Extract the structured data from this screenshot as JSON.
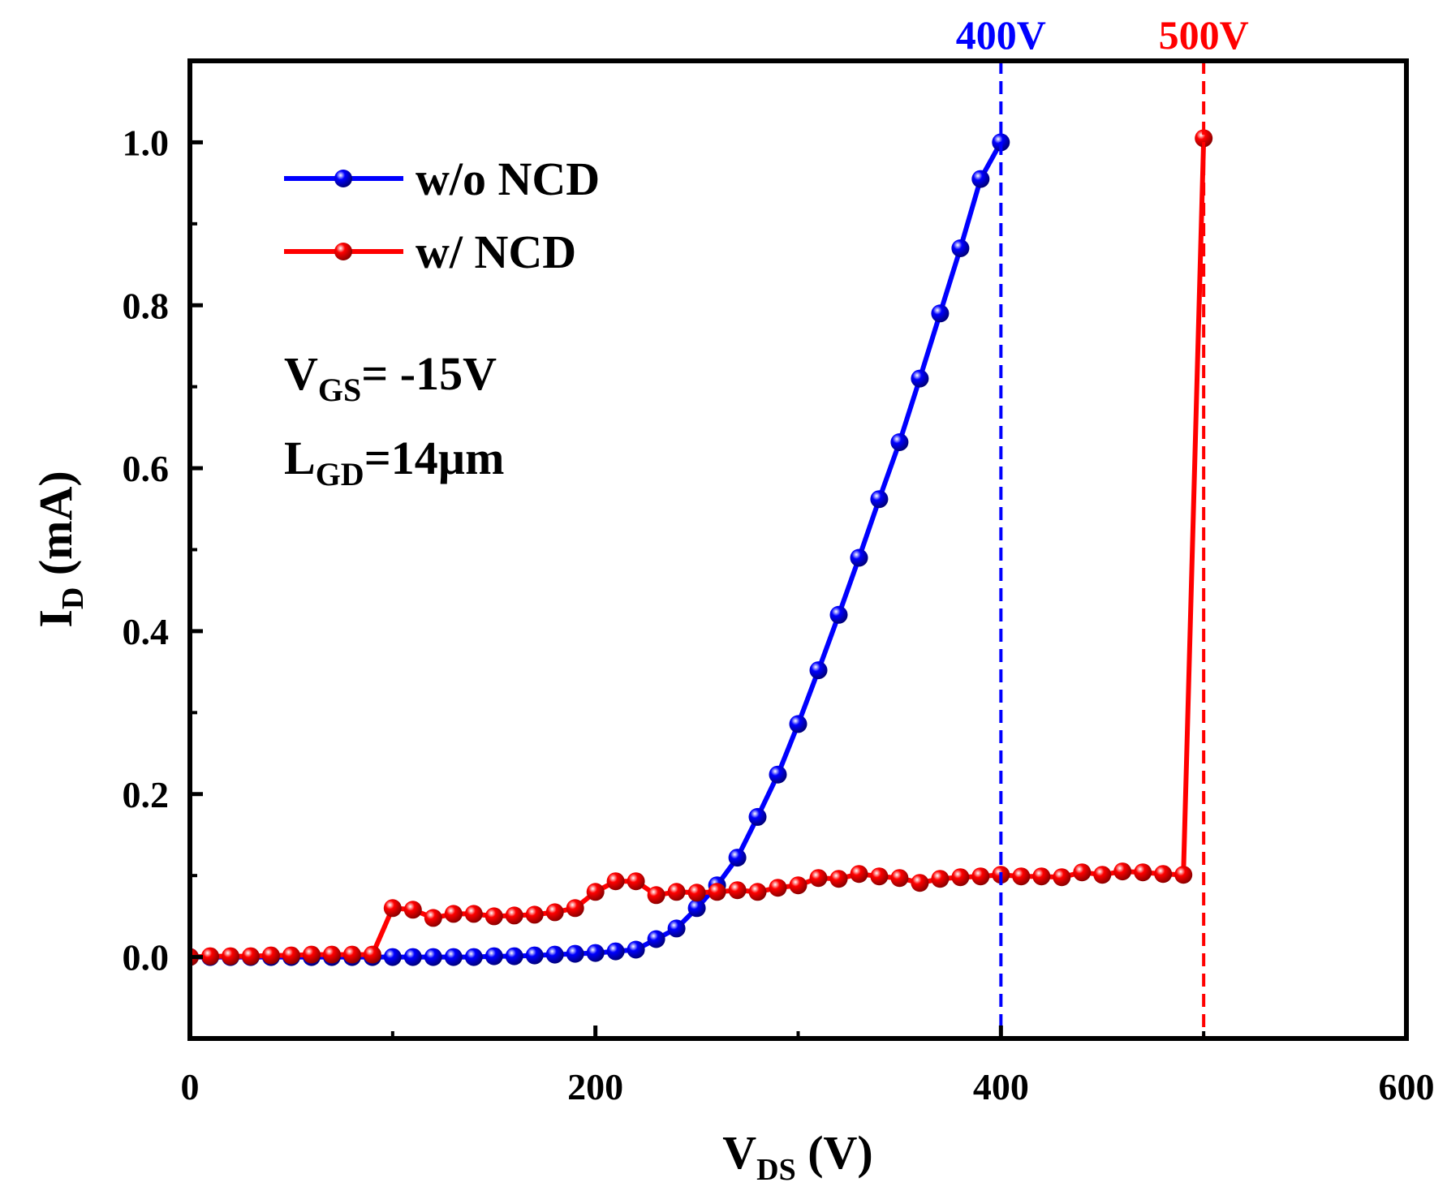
{
  "chart_data": {
    "type": "line",
    "xlabel": {
      "main": "V",
      "sub": "DS",
      "unit": " (V)"
    },
    "ylabel": {
      "main": "I",
      "sub": "D",
      "unit": " (mA)"
    },
    "xlim": [
      0,
      600
    ],
    "ylim": [
      -0.1,
      1.1
    ],
    "xticks": [
      0,
      200,
      400,
      600
    ],
    "yticks": [
      0.0,
      0.2,
      0.4,
      0.6,
      0.8,
      1.0
    ],
    "xtick_labels": [
      "0",
      "200",
      "400",
      "600"
    ],
    "ytick_labels": [
      "0.0",
      "0.2",
      "0.4",
      "0.6",
      "0.8",
      "1.0"
    ],
    "grid": false,
    "legend_position": "top-left",
    "series": [
      {
        "name": "w/o NCD",
        "color": "#0000ff",
        "marker": "sphere",
        "x": [
          0,
          10,
          20,
          30,
          40,
          50,
          60,
          70,
          80,
          90,
          100,
          110,
          120,
          130,
          140,
          150,
          160,
          170,
          180,
          190,
          200,
          210,
          220,
          230,
          240,
          250,
          260,
          270,
          280,
          290,
          300,
          310,
          320,
          330,
          340,
          350,
          360,
          370,
          380,
          390,
          400
        ],
        "y": [
          0,
          0,
          0,
          0,
          0,
          0,
          0,
          0,
          0,
          0,
          0,
          0,
          0,
          0,
          0,
          0.001,
          0.001,
          0.002,
          0.003,
          0.004,
          0.005,
          0.007,
          0.009,
          0.022,
          0.035,
          0.06,
          0.088,
          0.122,
          0.172,
          0.224,
          0.286,
          0.352,
          0.42,
          0.49,
          0.562,
          0.632,
          0.71,
          0.79,
          0.87,
          0.955,
          1.0
        ]
      },
      {
        "name": "w/ NCD",
        "color": "#ff0000",
        "marker": "sphere",
        "x": [
          0,
          10,
          20,
          30,
          40,
          50,
          60,
          70,
          80,
          90,
          100,
          110,
          120,
          130,
          140,
          150,
          160,
          170,
          180,
          190,
          200,
          210,
          220,
          230,
          240,
          250,
          260,
          270,
          280,
          290,
          300,
          310,
          320,
          330,
          340,
          350,
          360,
          370,
          380,
          390,
          400,
          410,
          420,
          430,
          440,
          450,
          460,
          470,
          480,
          490,
          500
        ],
        "y": [
          0,
          0.001,
          0.001,
          0.001,
          0.002,
          0.002,
          0.003,
          0.003,
          0.003,
          0.003,
          0.06,
          0.058,
          0.048,
          0.053,
          0.053,
          0.05,
          0.051,
          0.052,
          0.055,
          0.06,
          0.08,
          0.093,
          0.093,
          0.076,
          0.08,
          0.079,
          0.08,
          0.082,
          0.08,
          0.085,
          0.088,
          0.097,
          0.096,
          0.102,
          0.099,
          0.097,
          0.091,
          0.096,
          0.098,
          0.099,
          0.101,
          0.099,
          0.099,
          0.098,
          0.104,
          0.101,
          0.105,
          0.104,
          0.102,
          0.101,
          1.005
        ]
      }
    ],
    "reference_lines": [
      {
        "x": 400,
        "label": "400V",
        "color": "#0000ff"
      },
      {
        "x": 500,
        "label": "500V",
        "color": "#ff0000"
      }
    ],
    "annotations": [
      {
        "main": "V",
        "sub": "GS",
        "rest": "= -15V"
      },
      {
        "main": "L",
        "sub": "GD",
        "rest": "=14µm"
      }
    ]
  }
}
